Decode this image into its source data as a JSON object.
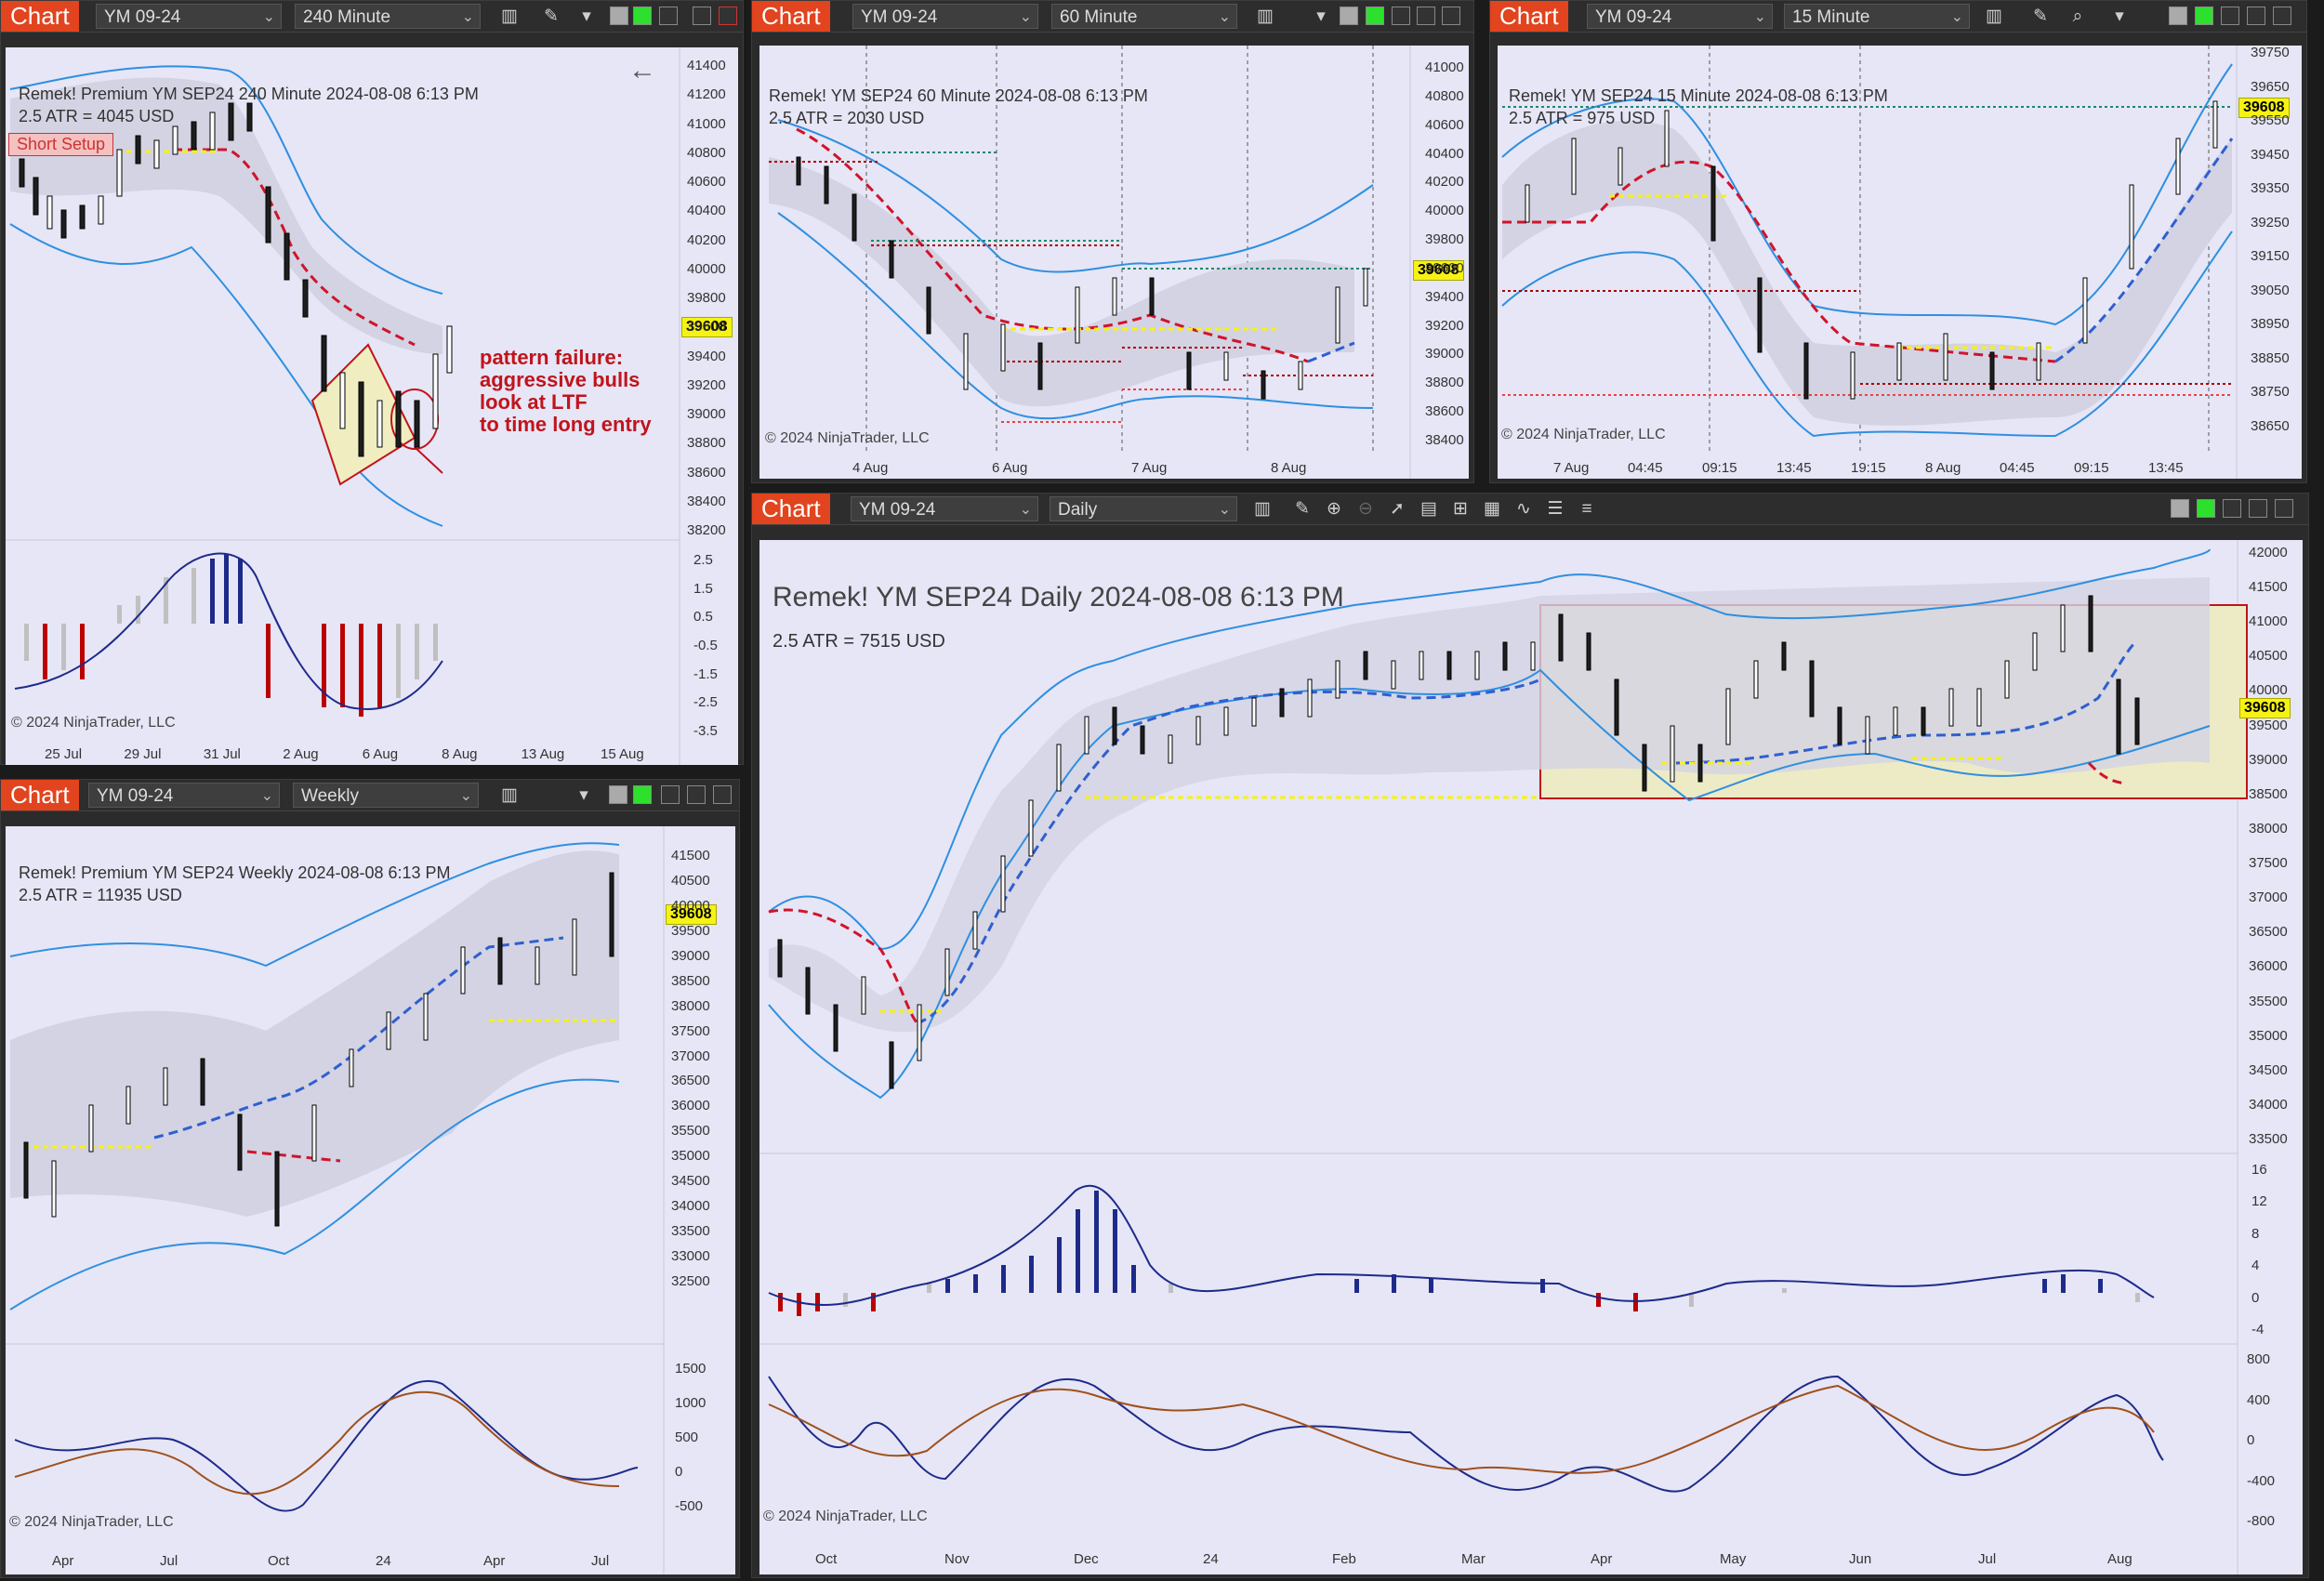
{
  "colors": {
    "chart_tag": "#e1441e",
    "plot_bg": "#e6e6f6",
    "bear": "#c0141c",
    "bull": "#2a3ea8",
    "yellow": "#f6f213",
    "band": "#2f8fe0"
  },
  "win1": {
    "tag": "Chart",
    "instrument": "YM 09-24",
    "period": "240 Minute",
    "title": "Remek!  Premium  YM SEP24  240 Minute  2024-08-08 6:13 PM",
    "atr": "2.5 ATR = 4045 USD",
    "setup": "Short Setup",
    "price": "39608",
    "copyright": "© 2024 NinjaTrader, LLC",
    "note": "pattern failure:\naggressive bulls\nlook at LTF\nto time long entry",
    "yticks": [
      "41400",
      "41200",
      "41000",
      "40800",
      "40600",
      "40400",
      "40200",
      "40000",
      "39800",
      "39600",
      "39400",
      "39200",
      "39000",
      "38800",
      "38600",
      "38400",
      "38200"
    ],
    "osc_ticks": [
      "2.5",
      "1.5",
      "0.5",
      "-0.5",
      "-1.5",
      "-2.5",
      "-3.5"
    ],
    "xticks": [
      "25 Jul",
      "29 Jul",
      "31 Jul",
      "2 Aug",
      "6 Aug",
      "8 Aug",
      "13 Aug",
      "15 Aug"
    ]
  },
  "win2": {
    "tag": "Chart",
    "instrument": "YM 09-24",
    "period": "60 Minute",
    "title": "Remek!  YM SEP24  60 Minute  2024-08-08 6:13 PM",
    "atr": "2.5 ATR = 2030 USD",
    "price": "39608",
    "copyright": "© 2024 NinjaTrader, LLC",
    "yticks": [
      "41000",
      "40800",
      "40600",
      "40400",
      "40200",
      "40000",
      "39800",
      "39600",
      "39400",
      "39200",
      "39000",
      "38800",
      "38600",
      "38400"
    ],
    "xticks": [
      "4 Aug",
      "6 Aug",
      "7 Aug",
      "8 Aug"
    ]
  },
  "win3": {
    "tag": "Chart",
    "instrument": "YM 09-24",
    "period": "15 Minute",
    "title": "Remek!  YM SEP24  15 Minute  2024-08-08 6:13 PM",
    "atr": "2.5 ATR = 975 USD",
    "price": "39608",
    "copyright": "© 2024 NinjaTrader, LLC",
    "yticks": [
      "39750",
      "39650",
      "39550",
      "39450",
      "39350",
      "39250",
      "39150",
      "39050",
      "38950",
      "38850",
      "38750",
      "38650"
    ],
    "xticks": [
      "7 Aug",
      "04:45",
      "09:15",
      "13:45",
      "19:15",
      "8 Aug",
      "04:45",
      "09:15",
      "13:45"
    ]
  },
  "win4": {
    "tag": "Chart",
    "instrument": "YM 09-24",
    "period": "Weekly",
    "title": "Remek!  Premium  YM SEP24  Weekly  2024-08-08 6:13 PM",
    "atr": "2.5 ATR = 11935 USD",
    "price": "39608",
    "copyright": "© 2024 NinjaTrader, LLC",
    "yticks": [
      "41500",
      "40500",
      "40000",
      "39500",
      "39000",
      "38500",
      "38000",
      "37500",
      "37000",
      "36500",
      "36000",
      "35500",
      "35000",
      "34500",
      "34000",
      "33500",
      "33000",
      "32500"
    ],
    "osc_ticks": [
      "1500",
      "1000",
      "500",
      "0",
      "-500"
    ],
    "xticks": [
      "Apr",
      "Jul",
      "Oct",
      "24",
      "Apr",
      "Jul"
    ]
  },
  "win5": {
    "tag": "Chart",
    "instrument": "YM 09-24",
    "period": "Daily",
    "title": "Remek!  YM SEP24  Daily  2024-08-08 6:13 PM",
    "atr": "2.5 ATR = 7515 USD",
    "price": "39608",
    "copyright": "© 2024 NinjaTrader, LLC",
    "yticks": [
      "42000",
      "41500",
      "41000",
      "40500",
      "40000",
      "39500",
      "39000",
      "38500",
      "38000",
      "37500",
      "37000",
      "36500",
      "36000",
      "35500",
      "35000",
      "34500",
      "34000",
      "33500"
    ],
    "osc1_ticks": [
      "16",
      "12",
      "8",
      "4",
      "0",
      "-4"
    ],
    "osc2_ticks": [
      "800",
      "400",
      "0",
      "-400",
      "-800"
    ],
    "xticks": [
      "Oct",
      "Nov",
      "Dec",
      "24",
      "Feb",
      "Mar",
      "Apr",
      "May",
      "Jun",
      "Jul",
      "Aug"
    ]
  }
}
